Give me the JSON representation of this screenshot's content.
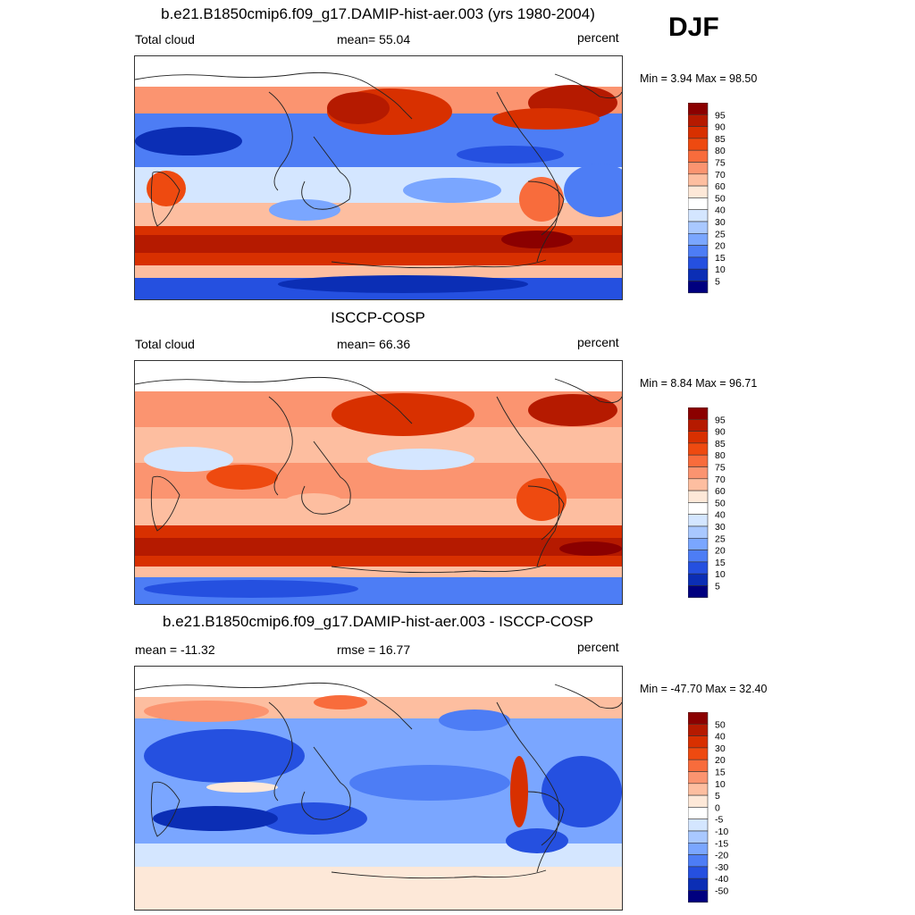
{
  "season": "DJF",
  "panels": [
    {
      "id": "model",
      "title": "b.e21.B1850cmip6.f09_g17.DAMIP-hist-aer.003 (yrs 1980-2004)",
      "left_text": "Total cloud",
      "center_text": "mean=  55.04",
      "right_text": "percent",
      "minmax": "Min =   3.94 Max =  98.50",
      "colorbar": {
        "levels": [
          "95",
          "90",
          "85",
          "80",
          "75",
          "70",
          "60",
          "50",
          "40",
          "30",
          "25",
          "20",
          "15",
          "10",
          "5"
        ],
        "colors": [
          "#8b0000",
          "#b51a00",
          "#d83000",
          "#ee4a10",
          "#f86c3c",
          "#fb9470",
          "#fdbea0",
          "#fde8d8",
          "#ffffff",
          "#d4e6ff",
          "#a9c8ff",
          "#7aa6ff",
          "#4d7df5",
          "#2550e0",
          "#0b2eb5",
          "#00007f"
        ]
      }
    },
    {
      "id": "obs",
      "title": "ISCCP-COSP",
      "left_text": "Total cloud",
      "center_text": "mean=  66.36",
      "right_text": "percent",
      "minmax": "Min =   8.84 Max =  96.71",
      "colorbar": {
        "levels": [
          "95",
          "90",
          "85",
          "80",
          "75",
          "70",
          "60",
          "50",
          "40",
          "30",
          "25",
          "20",
          "15",
          "10",
          "5"
        ],
        "colors": [
          "#8b0000",
          "#b51a00",
          "#d83000",
          "#ee4a10",
          "#f86c3c",
          "#fb9470",
          "#fdbea0",
          "#fde8d8",
          "#ffffff",
          "#d4e6ff",
          "#a9c8ff",
          "#7aa6ff",
          "#4d7df5",
          "#2550e0",
          "#0b2eb5",
          "#00007f"
        ]
      }
    },
    {
      "id": "diff",
      "title": "b.e21.B1850cmip6.f09_g17.DAMIP-hist-aer.003 - ISCCP-COSP",
      "left_text": "mean = -11.32",
      "center_text": "rmse =  16.77",
      "right_text": "percent",
      "minmax": "Min = -47.70 Max =  32.40",
      "colorbar": {
        "levels": [
          "50",
          "40",
          "30",
          "20",
          "15",
          "10",
          "5",
          "0",
          "-5",
          "-10",
          "-15",
          "-20",
          "-30",
          "-40",
          "-50"
        ],
        "colors": [
          "#8b0000",
          "#b51a00",
          "#d83000",
          "#ee4a10",
          "#f86c3c",
          "#fb9470",
          "#fdbea0",
          "#fde8d8",
          "#ffffff",
          "#d4e6ff",
          "#a9c8ff",
          "#7aa6ff",
          "#4d7df5",
          "#2550e0",
          "#0b2eb5",
          "#00007f"
        ]
      }
    }
  ]
}
